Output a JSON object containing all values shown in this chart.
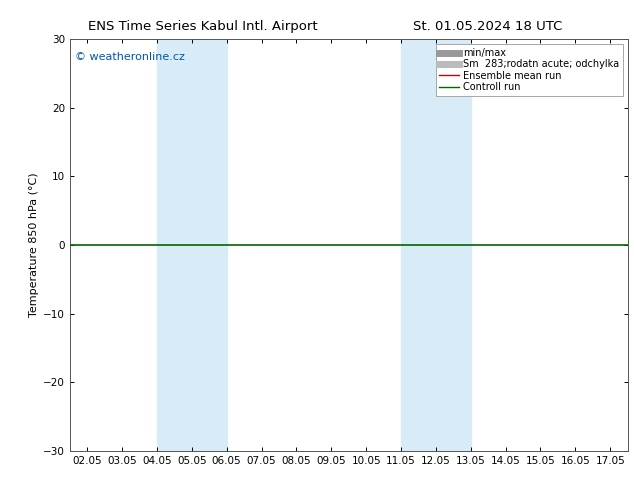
{
  "title_left": "ENS Time Series Kabul Intl. Airport",
  "title_right": "St. 01.05.2024 18 UTC",
  "ylabel": "Temperature 850 hPa (°C)",
  "ylim": [
    -30,
    30
  ],
  "yticks": [
    -30,
    -20,
    -10,
    0,
    10,
    20,
    30
  ],
  "xtick_labels": [
    "02.05",
    "03.05",
    "04.05",
    "05.05",
    "06.05",
    "07.05",
    "08.05",
    "09.05",
    "10.05",
    "11.05",
    "12.05",
    "13.05",
    "14.05",
    "15.05",
    "16.05",
    "17.05"
  ],
  "band_ranges": [
    [
      2,
      4
    ],
    [
      9,
      11
    ]
  ],
  "hline_y": 0,
  "hline_color": "#006600",
  "hline_lw": 1.2,
  "band_color": "#d8ecf8",
  "watermark_text": "© weatheronline.cz",
  "watermark_color": "#0055aa",
  "legend_entries": [
    {
      "label": "min/max",
      "color": "#999999",
      "lw": 5,
      "ls": "-"
    },
    {
      "label": "Sm  283;rodatn acute; odchylka",
      "color": "#bbbbbb",
      "lw": 5,
      "ls": "-"
    },
    {
      "label": "Ensemble mean run",
      "color": "#cc0000",
      "lw": 1.0,
      "ls": "-"
    },
    {
      "label": "Controll run",
      "color": "#006600",
      "lw": 1.0,
      "ls": "-"
    }
  ],
  "bg_color": "#ffffff",
  "title_fontsize": 9.5,
  "ylabel_fontsize": 8,
  "tick_fontsize": 7.5,
  "watermark_fontsize": 8,
  "legend_fontsize": 7
}
